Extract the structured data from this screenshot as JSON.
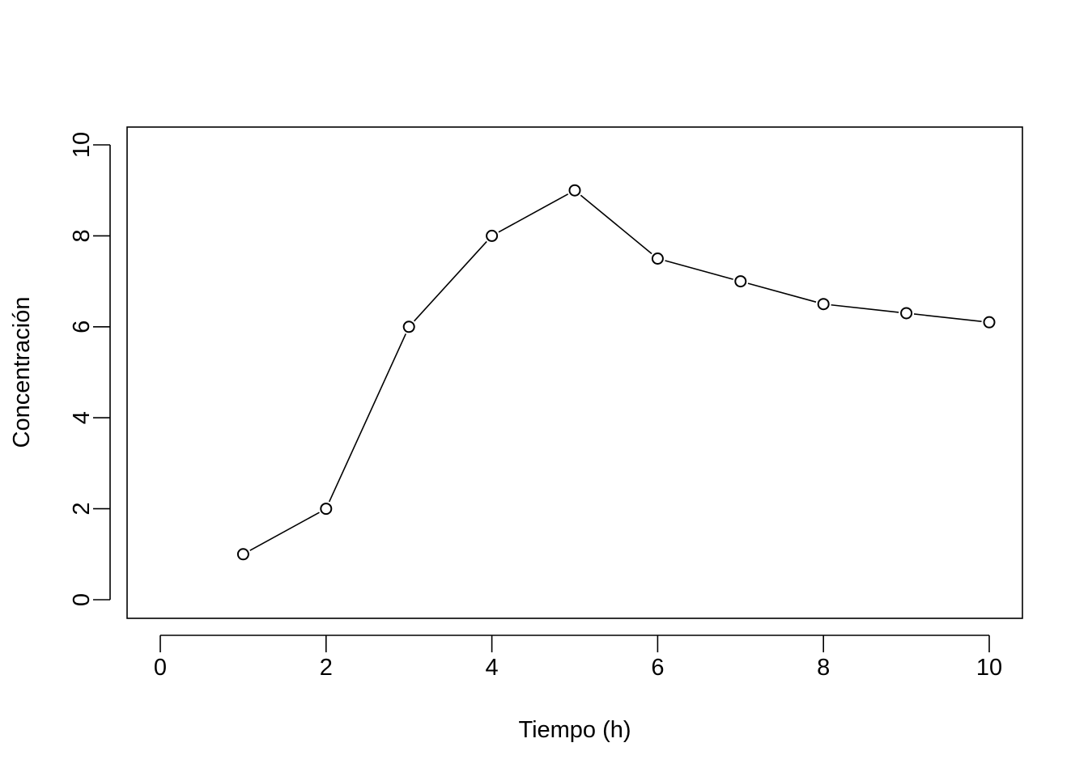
{
  "chart_data": {
    "type": "line",
    "title": "",
    "xlabel": "Tiempo (h)",
    "ylabel": "Concentración",
    "xlim": [
      0,
      10
    ],
    "ylim": [
      0,
      10
    ],
    "x_ticks": [
      "0",
      "2",
      "4",
      "6",
      "8",
      "10"
    ],
    "y_ticks": [
      "0",
      "2",
      "4",
      "6",
      "8",
      "10"
    ],
    "grid": false,
    "legend": "none",
    "marker": "open-circle",
    "colors": {
      "line": "#000000",
      "axes": "#000000",
      "background": "#ffffff"
    },
    "series": [
      {
        "x": [
          1,
          2,
          3,
          4,
          5,
          6,
          7,
          8,
          9,
          10
        ],
        "y": [
          1,
          2,
          6,
          8,
          9,
          7.5,
          7,
          6.5,
          6.3,
          6.1
        ]
      }
    ]
  }
}
